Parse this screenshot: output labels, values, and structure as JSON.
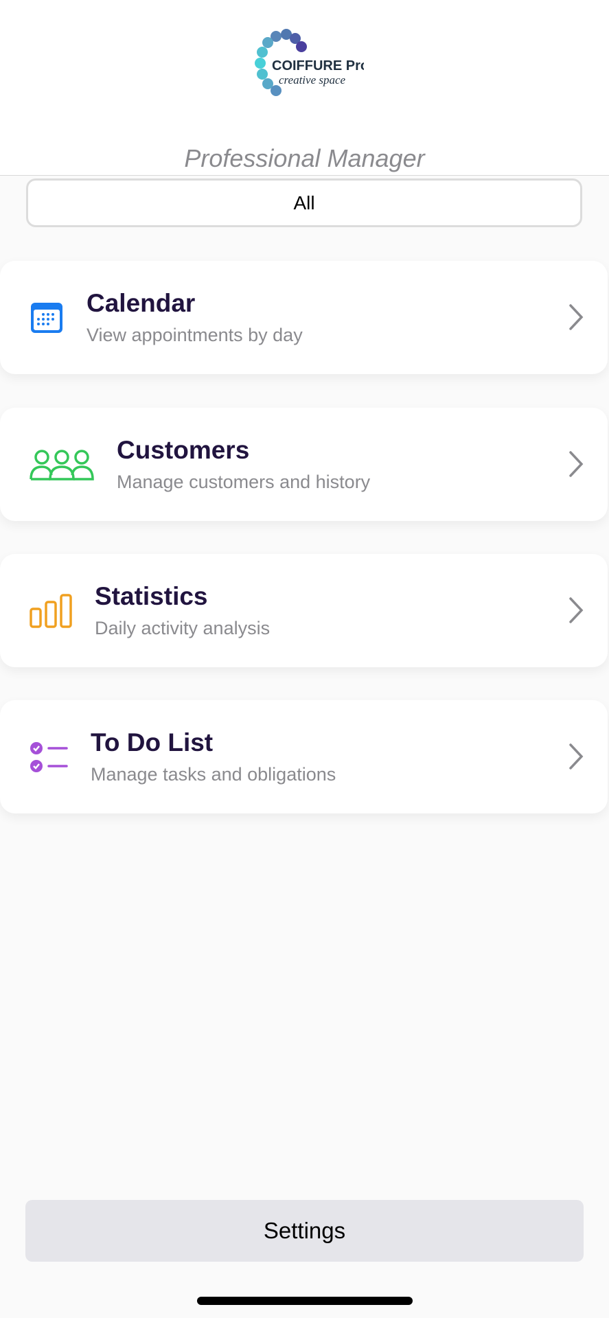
{
  "header": {
    "logo_text": "COIFFURE Pro",
    "logo_subtext": "creative space",
    "title": "Professional Manager"
  },
  "filter": {
    "selected": "All"
  },
  "menu": [
    {
      "title": "Calendar",
      "subtitle": "View appointments by day",
      "icon": "calendar-icon",
      "color": "#1a7cf0"
    },
    {
      "title": "Customers",
      "subtitle": "Manage customers and history",
      "icon": "people-icon",
      "color": "#34c759"
    },
    {
      "title": "Statistics",
      "subtitle": "Daily activity analysis",
      "icon": "bar-chart-icon",
      "color": "#f0a020"
    },
    {
      "title": "To Do List",
      "subtitle": "Manage tasks and obligations",
      "icon": "checklist-icon",
      "color": "#a550d8"
    }
  ],
  "footer": {
    "settings_label": "Settings"
  }
}
